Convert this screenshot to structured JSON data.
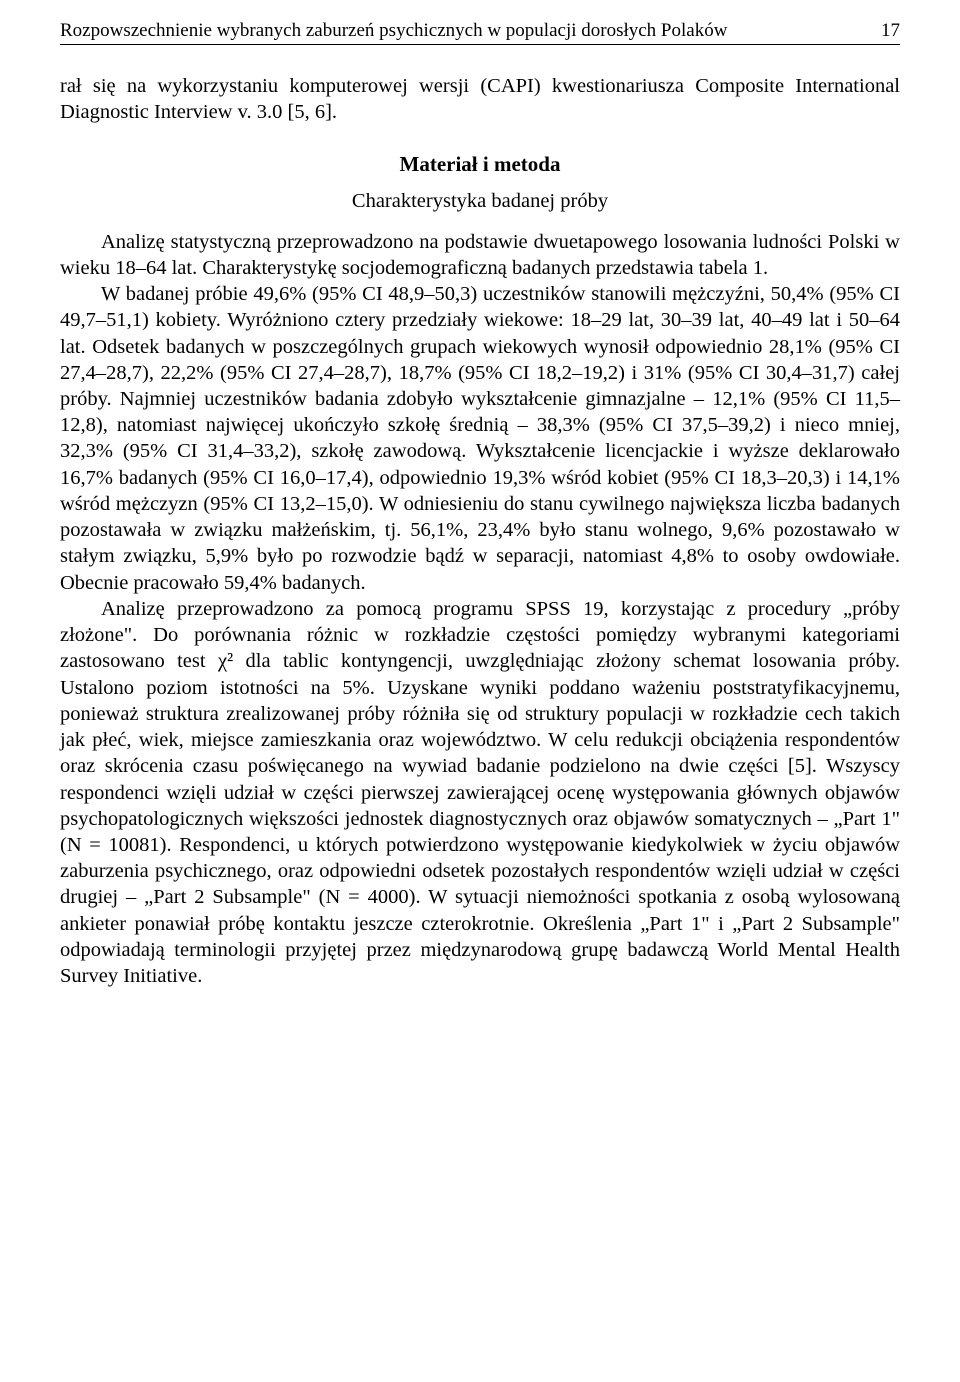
{
  "runningHead": {
    "title": "Rozpowszechnienie wybranych zaburzeń psychicznych w populacji dorosłych Polaków",
    "pageNumber": "17"
  },
  "introContinuation": "rał się na wykorzystaniu komputerowej wersji (CAPI) kwestionariusza Composite International Diagnostic Interview v. 3.0 [5, 6].",
  "sectionHeading": "Materiał i metoda",
  "subsectionHeading": "Charakterystyka badanej próby",
  "para1": "Analizę statystyczną przeprowadzono na podstawie dwuetapowego losowania ludności Polski w wieku 18–64 lat. Charakterystykę socjodemograficzną badanych przedstawia tabela 1.",
  "para2": "W badanej próbie 49,6% (95% CI 48,9–50,3) uczestników stanowili mężczyźni, 50,4% (95% CI 49,7–51,1) kobiety. Wyróżniono cztery przedziały wiekowe: 18–29 lat, 30–39 lat, 40–49 lat i 50–64 lat. Odsetek badanych w poszczególnych grupach wiekowych wynosił odpowiednio 28,1% (95% CI 27,4–28,7), 22,2% (95% CI 27,4–28,7), 18,7% (95% CI 18,2–19,2) i 31% (95% CI 30,4–31,7) całej próby. Najmniej uczestników badania zdobyło wykształcenie gimnazjalne – 12,1% (95% CI 11,5–12,8), natomiast najwięcej ukończyło szkołę średnią – 38,3% (95% CI 37,5–39,2) i nieco mniej, 32,3% (95% CI 31,4–33,2), szkołę zawodową. Wykształcenie licencjackie i wyższe deklarowało 16,7% badanych (95% CI 16,0–17,4), odpowiednio 19,3% wśród kobiet (95% CI 18,3–20,3) i 14,1% wśród mężczyzn (95% CI 13,2–15,0). W odniesieniu do stanu cywilnego największa liczba badanych pozostawała w związku małżeńskim, tj. 56,1%, 23,4% było stanu wolnego, 9,6% pozostawało w stałym związku, 5,9% było po rozwodzie bądź w separacji, natomiast 4,8% to osoby owdowiałe. Obecnie pracowało 59,4% badanych.",
  "para3": "Analizę przeprowadzono za pomocą programu SPSS 19, korzystając z procedury „próby złożone\". Do porównania różnic w rozkładzie częstości pomiędzy wybranymi kategoriami zastosowano test χ² dla tablic kontyngencji, uwzględniając złożony schemat losowania próby. Ustalono poziom istotności na 5%. Uzyskane wyniki poddano ważeniu poststratyfikacyjnemu, ponieważ struktura zrealizowanej próby różniła się od struktury populacji w rozkładzie cech takich jak płeć, wiek, miejsce zamieszkania oraz województwo. W celu redukcji obciążenia respondentów oraz skrócenia czasu poświęcanego na wywiad badanie podzielono na dwie części [5]. Wszyscy respondenci wzięli udział w części pierwszej zawierającej ocenę występowania głównych objawów psychopatologicznych większości jednostek diagnostycznych oraz objawów somatycznych – „Part 1\" (N = 10081). Respondenci, u których potwierdzono występowanie kiedykolwiek w życiu objawów zaburzenia psychicznego, oraz odpowiedni odsetek pozostałych respondentów wzięli udział w części drugiej – „Part 2 Subsample\" (N = 4000). W sytuacji niemożności spotkania z osobą wylosowaną ankieter ponawiał próbę kontaktu jeszcze czterokrotnie. Określenia „Part 1\" i „Part 2 Subsample\" odpowiadają terminologii przyjętej przez międzynarodową grupę badawczą World Mental Health Survey Initiative."
}
